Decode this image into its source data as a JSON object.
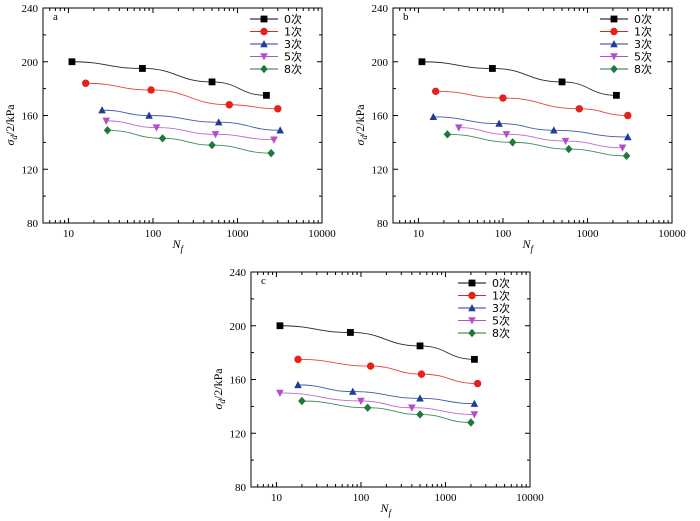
{
  "colors": {
    "s0": "#000000",
    "s1": "#e32219",
    "s3": "#1f3c9a",
    "s5": "#b34fc8",
    "s8": "#1f7a3a"
  },
  "chart_data": [
    {
      "type": "scatter",
      "panel_label": "a",
      "xscale": "log",
      "xlim": [
        5,
        10000
      ],
      "ylim": [
        80,
        240
      ],
      "xticks": [
        "10",
        "100",
        "1000",
        "10000"
      ],
      "yticks": [
        "80",
        "120",
        "160",
        "200",
        "240"
      ],
      "xlabel_main": "N",
      "xlabel_sub": "f",
      "ylabel_main": "σ",
      "ylabel_sub": "d",
      "ylabel_rest": "/2/kPa",
      "legend_position": "top-right",
      "series": [
        {
          "name": "0次",
          "marker": "square",
          "color": "#000000",
          "x": [
            11,
            75,
            500,
            2200
          ],
          "y": [
            200,
            195,
            185,
            175
          ]
        },
        {
          "name": "1次",
          "marker": "circle",
          "color": "#e32219",
          "x": [
            16,
            95,
            800,
            3000
          ],
          "y": [
            184,
            179,
            168,
            165
          ]
        },
        {
          "name": "3次",
          "marker": "triangle-up",
          "color": "#1f3c9a",
          "x": [
            25,
            90,
            600,
            3200
          ],
          "y": [
            164,
            160,
            155,
            149
          ]
        },
        {
          "name": "5次",
          "marker": "triangle-down",
          "color": "#b34fc8",
          "x": [
            28,
            110,
            550,
            2700
          ],
          "y": [
            156,
            151,
            146,
            142
          ]
        },
        {
          "name": "8次",
          "marker": "diamond",
          "color": "#1f7a3a",
          "x": [
            29,
            130,
            500,
            2500
          ],
          "y": [
            149,
            143,
            138,
            132
          ]
        }
      ]
    },
    {
      "type": "scatter",
      "panel_label": "b",
      "xscale": "log",
      "xlim": [
        5,
        10000
      ],
      "ylim": [
        80,
        240
      ],
      "xticks": [
        "10",
        "100",
        "1000",
        "10000"
      ],
      "yticks": [
        "80",
        "120",
        "160",
        "200",
        "240"
      ],
      "xlabel_main": "N",
      "xlabel_sub": "f",
      "ylabel_main": "σ",
      "ylabel_sub": "d",
      "ylabel_rest": "/2/kPa",
      "legend_position": "top-right",
      "series": [
        {
          "name": "0次",
          "marker": "square",
          "color": "#000000",
          "x": [
            11,
            75,
            500,
            2200
          ],
          "y": [
            200,
            195,
            185,
            175
          ]
        },
        {
          "name": "1次",
          "marker": "circle",
          "color": "#e32219",
          "x": [
            16,
            100,
            800,
            3000
          ],
          "y": [
            178,
            173,
            165,
            160
          ]
        },
        {
          "name": "3次",
          "marker": "triangle-up",
          "color": "#1f3c9a",
          "x": [
            15,
            90,
            400,
            3000
          ],
          "y": [
            159,
            154,
            149,
            144
          ]
        },
        {
          "name": "5次",
          "marker": "triangle-down",
          "color": "#b34fc8",
          "x": [
            30,
            110,
            550,
            2600
          ],
          "y": [
            151,
            146,
            141,
            136
          ]
        },
        {
          "name": "8次",
          "marker": "diamond",
          "color": "#1f7a3a",
          "x": [
            22,
            130,
            600,
            2900
          ],
          "y": [
            146,
            140,
            135,
            130
          ]
        }
      ]
    },
    {
      "type": "scatter",
      "panel_label": "c",
      "xscale": "log",
      "xlim": [
        5,
        10000
      ],
      "ylim": [
        80,
        240
      ],
      "xticks": [
        "10",
        "100",
        "1000",
        "10000"
      ],
      "yticks": [
        "80",
        "120",
        "160",
        "200",
        "240"
      ],
      "xlabel_main": "N",
      "xlabel_sub": "f",
      "ylabel_main": "σ",
      "ylabel_sub": "d",
      "ylabel_rest": "/2/kPa",
      "legend_position": "top-right",
      "series": [
        {
          "name": "0次",
          "marker": "square",
          "color": "#000000",
          "x": [
            11,
            75,
            500,
            2200
          ],
          "y": [
            200,
            195,
            185,
            175
          ]
        },
        {
          "name": "1次",
          "marker": "circle",
          "color": "#e32219",
          "x": [
            18,
            130,
            520,
            2400
          ],
          "y": [
            175,
            170,
            164,
            157
          ]
        },
        {
          "name": "3次",
          "marker": "triangle-up",
          "color": "#1f3c9a",
          "x": [
            18,
            80,
            500,
            2200
          ],
          "y": [
            156,
            151,
            146,
            142
          ]
        },
        {
          "name": "5次",
          "marker": "triangle-down",
          "color": "#b34fc8",
          "x": [
            11,
            100,
            400,
            2200
          ],
          "y": [
            150,
            144,
            139,
            134
          ]
        },
        {
          "name": "8次",
          "marker": "diamond",
          "color": "#1f7a3a",
          "x": [
            20,
            120,
            500,
            2000
          ],
          "y": [
            144,
            139,
            134,
            128
          ]
        }
      ]
    }
  ]
}
